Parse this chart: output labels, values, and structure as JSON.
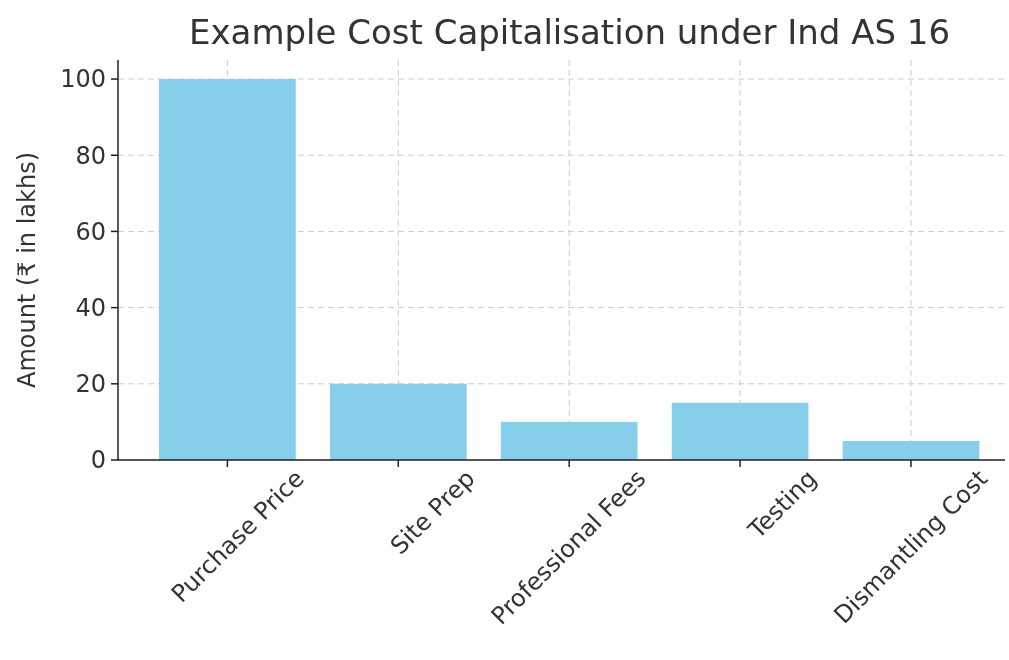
{
  "chart_data": {
    "type": "bar",
    "title": "Example Cost Capitalisation under Ind AS 16",
    "ylabel": "Amount (₹ in lakhs)",
    "categories": [
      "Purchase Price",
      "Site Prep",
      "Professional Fees",
      "Testing",
      "Dismantling Cost"
    ],
    "values": [
      100,
      20,
      10,
      15,
      5
    ],
    "color": "#87ceeb",
    "ylim": [
      0,
      105
    ],
    "yticks": [
      0,
      20,
      40,
      60,
      80,
      100
    ],
    "grid": true
  }
}
